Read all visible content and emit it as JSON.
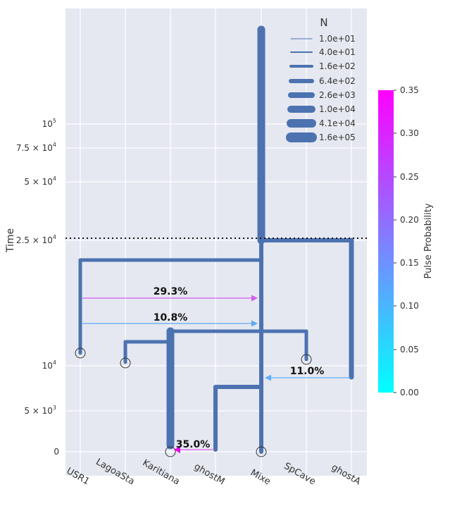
{
  "figure": {
    "ylabel": "Time",
    "colorbar_label": "Pulse Probability",
    "colorbar_ticks": [
      "0.00",
      "0.05",
      "0.10",
      "0.15",
      "0.20",
      "0.25",
      "0.30",
      "0.35"
    ],
    "legend_title": "N",
    "legend_entries": [
      "1.0e+01",
      "4.0e+01",
      "1.6e+02",
      "6.4e+02",
      "2.6e+03",
      "1.0e+04",
      "4.1e+04",
      "1.6e+05"
    ],
    "y_ticks": [
      {
        "base": "0",
        "exp": ""
      },
      {
        "base": "5 × 10",
        "exp": "3"
      },
      {
        "base": "10",
        "exp": "4"
      },
      {
        "base": "2.5 × 10",
        "exp": "4"
      },
      {
        "base": "5 × 10",
        "exp": "4"
      },
      {
        "base": "7.5 × 10",
        "exp": "4"
      },
      {
        "base": "10",
        "exp": "5"
      }
    ],
    "demes": [
      "USR1",
      "LagoaSta",
      "Karitiana",
      "ghostM",
      "Mixe",
      "SpCave",
      "ghostA"
    ],
    "pulses": [
      "29.3%",
      "10.8%",
      "11.0%",
      "35.0%"
    ],
    "colors": {
      "background": "#e5e8f0",
      "grid": "#ffffff",
      "branch": "#4c72b0",
      "colormap_low": "#00ffff",
      "colormap_high": "#ff00ff",
      "text": "#333333"
    }
  }
}
